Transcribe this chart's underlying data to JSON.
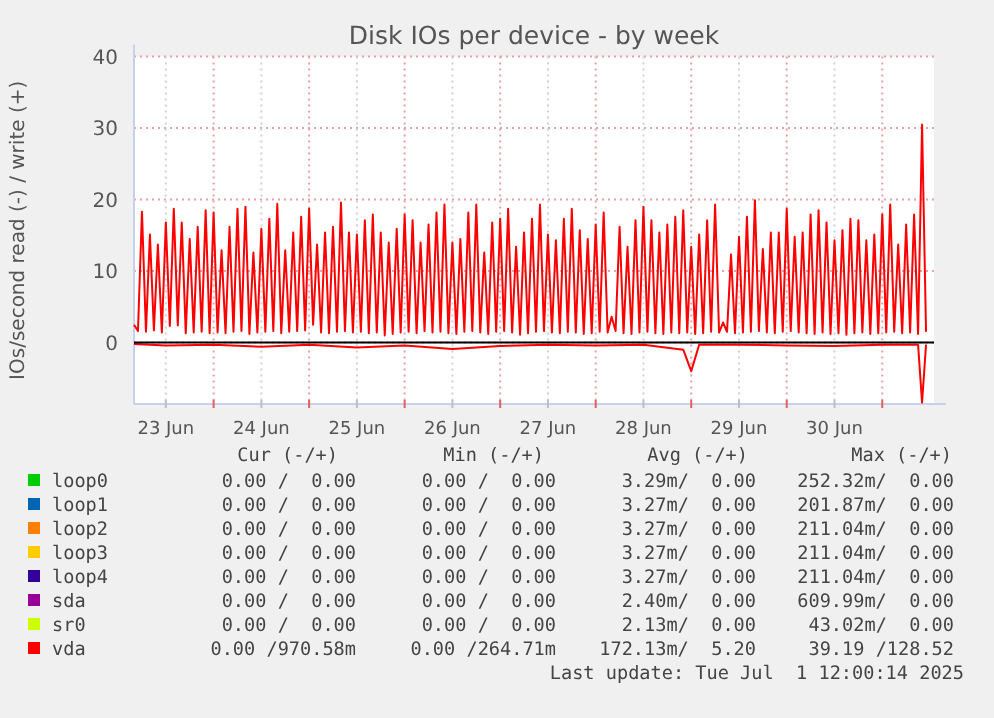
{
  "chart_data": {
    "type": "line",
    "title": "Disk IOs per device - by week",
    "ylabel": "IOs/second read (-) / write (+)",
    "xlim": [
      "2025-06-23T04:00",
      "2025-07-01T13:00"
    ],
    "xticks": [
      {
        "value": "2025-06-23T12:00",
        "label": "23 Jun"
      },
      {
        "value": "2025-06-24T00:00",
        "label": null
      },
      {
        "value": "2025-06-24T12:00",
        "label": "24 Jun"
      },
      {
        "value": "2025-06-25T00:00",
        "label": null
      },
      {
        "value": "2025-06-25T12:00",
        "label": "25 Jun"
      },
      {
        "value": "2025-06-26T00:00",
        "label": null
      },
      {
        "value": "2025-06-26T12:00",
        "label": "26 Jun"
      },
      {
        "value": "2025-06-27T00:00",
        "label": null
      },
      {
        "value": "2025-06-27T12:00",
        "label": "27 Jun"
      },
      {
        "value": "2025-06-28T00:00",
        "label": null
      },
      {
        "value": "2025-06-28T12:00",
        "label": "28 Jun"
      },
      {
        "value": "2025-06-29T00:00",
        "label": null
      },
      {
        "value": "2025-06-29T12:00",
        "label": "29 Jun"
      },
      {
        "value": "2025-06-30T00:00",
        "label": null
      },
      {
        "value": "2025-06-30T12:00",
        "label": "30 Jun"
      },
      {
        "value": "2025-07-01T00:00",
        "label": null
      }
    ],
    "ref_lines": [
      {
        "axis": "y",
        "value": 0,
        "color": "#000000"
      }
    ],
    "ylim": [
      -8.6,
      40
    ],
    "yticks": [
      0,
      10,
      20,
      30,
      40
    ],
    "grid": true,
    "legend": "bottom",
    "series": [
      {
        "name": "loop0",
        "color": "#00cc00"
      },
      {
        "name": "loop1",
        "color": "#0066b3"
      },
      {
        "name": "loop2",
        "color": "#ff8000"
      },
      {
        "name": "loop3",
        "color": "#ffcc00"
      },
      {
        "name": "loop4",
        "color": "#330099"
      },
      {
        "name": "sda",
        "color": "#990099"
      },
      {
        "name": "sr0",
        "color": "#ccff00"
      },
      {
        "name": "vda",
        "color": "#ff0000",
        "x": [
          "2025-06-23T04:00",
          "2025-06-23T05:00",
          "2025-06-23T06:00",
          "2025-06-23T07:00",
          "2025-06-23T08:00",
          "2025-06-23T09:00",
          "2025-06-23T10:00",
          "2025-06-23T11:00",
          "2025-06-23T12:00",
          "2025-06-23T13:00",
          "2025-06-23T14:00",
          "2025-06-23T15:00",
          "2025-06-23T16:00",
          "2025-06-23T17:00",
          "2025-06-23T18:00",
          "2025-06-23T19:00",
          "2025-06-23T20:00",
          "2025-06-23T21:00",
          "2025-06-23T22:00",
          "2025-06-23T23:00",
          "2025-06-24T00:00",
          "2025-06-24T01:00",
          "2025-06-24T02:00",
          "2025-06-24T03:00",
          "2025-06-24T04:00",
          "2025-06-24T05:00",
          "2025-06-24T06:00",
          "2025-06-24T07:00",
          "2025-06-24T08:00",
          "2025-06-24T09:00",
          "2025-06-24T10:00",
          "2025-06-24T11:00",
          "2025-06-24T12:00",
          "2025-06-24T13:00",
          "2025-06-24T14:00",
          "2025-06-24T15:00",
          "2025-06-24T16:00",
          "2025-06-24T17:00",
          "2025-06-24T18:00",
          "2025-06-24T19:00",
          "2025-06-24T20:00",
          "2025-06-24T21:00",
          "2025-06-24T22:00",
          "2025-06-24T23:00",
          "2025-06-25T00:00",
          "2025-06-25T01:00",
          "2025-06-25T02:00",
          "2025-06-25T03:00",
          "2025-06-25T04:00",
          "2025-06-25T05:00",
          "2025-06-25T06:00",
          "2025-06-25T07:00",
          "2025-06-25T08:00",
          "2025-06-25T09:00",
          "2025-06-25T10:00",
          "2025-06-25T11:00",
          "2025-06-25T12:00",
          "2025-06-25T13:00",
          "2025-06-25T14:00",
          "2025-06-25T15:00",
          "2025-06-25T16:00",
          "2025-06-25T17:00",
          "2025-06-25T18:00",
          "2025-06-25T19:00",
          "2025-06-25T20:00",
          "2025-06-25T21:00",
          "2025-06-25T22:00",
          "2025-06-25T23:00",
          "2025-06-26T00:00",
          "2025-06-26T01:00",
          "2025-06-26T02:00",
          "2025-06-26T03:00",
          "2025-06-26T04:00",
          "2025-06-26T05:00",
          "2025-06-26T06:00",
          "2025-06-26T07:00",
          "2025-06-26T08:00",
          "2025-06-26T09:00",
          "2025-06-26T10:00",
          "2025-06-26T11:00",
          "2025-06-26T12:00",
          "2025-06-26T13:00",
          "2025-06-26T14:00",
          "2025-06-26T15:00",
          "2025-06-26T16:00",
          "2025-06-26T17:00",
          "2025-06-26T18:00",
          "2025-06-26T19:00",
          "2025-06-26T20:00",
          "2025-06-26T21:00",
          "2025-06-26T22:00",
          "2025-06-26T23:00",
          "2025-06-27T00:00",
          "2025-06-27T01:00",
          "2025-06-27T02:00",
          "2025-06-27T03:00",
          "2025-06-27T04:00",
          "2025-06-27T05:00",
          "2025-06-27T06:00",
          "2025-06-27T07:00",
          "2025-06-27T08:00",
          "2025-06-27T09:00",
          "2025-06-27T10:00",
          "2025-06-27T11:00",
          "2025-06-27T12:00",
          "2025-06-27T13:00",
          "2025-06-27T14:00",
          "2025-06-27T15:00",
          "2025-06-27T16:00",
          "2025-06-27T17:00",
          "2025-06-27T18:00",
          "2025-06-27T19:00",
          "2025-06-27T20:00",
          "2025-06-27T21:00",
          "2025-06-27T22:00",
          "2025-06-27T23:00",
          "2025-06-28T00:00",
          "2025-06-28T01:00",
          "2025-06-28T02:00",
          "2025-06-28T03:00",
          "2025-06-28T04:00",
          "2025-06-28T05:00",
          "2025-06-28T06:00",
          "2025-06-28T07:00",
          "2025-06-28T08:00",
          "2025-06-28T09:00",
          "2025-06-28T10:00",
          "2025-06-28T11:00",
          "2025-06-28T12:00",
          "2025-06-28T13:00",
          "2025-06-28T14:00",
          "2025-06-28T15:00",
          "2025-06-28T16:00",
          "2025-06-28T17:00",
          "2025-06-28T18:00",
          "2025-06-28T19:00",
          "2025-06-28T20:00",
          "2025-06-28T21:00",
          "2025-06-28T22:00",
          "2025-06-28T23:00",
          "2025-06-29T00:00",
          "2025-06-29T01:00",
          "2025-06-29T02:00",
          "2025-06-29T03:00",
          "2025-06-29T04:00",
          "2025-06-29T05:00",
          "2025-06-29T06:00",
          "2025-06-29T07:00",
          "2025-06-29T08:00",
          "2025-06-29T09:00",
          "2025-06-29T10:00",
          "2025-06-29T11:00",
          "2025-06-29T12:00",
          "2025-06-29T13:00",
          "2025-06-29T14:00",
          "2025-06-29T15:00",
          "2025-06-29T16:00",
          "2025-06-29T17:00",
          "2025-06-29T18:00",
          "2025-06-29T19:00",
          "2025-06-29T20:00",
          "2025-06-29T21:00",
          "2025-06-29T22:00",
          "2025-06-29T23:00",
          "2025-06-30T00:00",
          "2025-06-30T01:00",
          "2025-06-30T02:00",
          "2025-06-30T03:00",
          "2025-06-30T04:00",
          "2025-06-30T05:00",
          "2025-06-30T06:00",
          "2025-06-30T07:00",
          "2025-06-30T08:00",
          "2025-06-30T09:00",
          "2025-06-30T10:00",
          "2025-06-30T11:00",
          "2025-06-30T12:00",
          "2025-06-30T13:00",
          "2025-06-30T14:00",
          "2025-06-30T15:00",
          "2025-06-30T16:00",
          "2025-06-30T17:00",
          "2025-06-30T18:00",
          "2025-06-30T19:00",
          "2025-06-30T20:00",
          "2025-06-30T21:00",
          "2025-06-30T22:00",
          "2025-06-30T23:00",
          "2025-07-01T00:00",
          "2025-07-01T01:00",
          "2025-07-01T02:00",
          "2025-07-01T03:00",
          "2025-07-01T04:00",
          "2025-07-01T05:00",
          "2025-07-01T06:00",
          "2025-07-01T07:00",
          "2025-07-01T08:00",
          "2025-07-01T09:00",
          "2025-07-01T10:00",
          "2025-07-01T11:00"
        ],
        "values": [
          2.5,
          1.6,
          18.3,
          1.5,
          15.1,
          1.7,
          13.7,
          1.4,
          16.8,
          2.3,
          18.7,
          2.4,
          16.8,
          1.3,
          14.5,
          1.4,
          16.2,
          1.5,
          18.5,
          1.3,
          18.2,
          1.4,
          12.9,
          1.3,
          16.2,
          1.5,
          18.7,
          1.6,
          19.0,
          1.2,
          12.6,
          1.4,
          15.9,
          1.5,
          17.3,
          1.6,
          19.4,
          1.3,
          12.9,
          1.5,
          15.4,
          1.6,
          17.6,
          1.7,
          18.7,
          2.5,
          13.7,
          1.4,
          15.4,
          1.3,
          16.2,
          1.5,
          19.6,
          1.6,
          15.4,
          1.4,
          15.1,
          1.5,
          17.1,
          1.3,
          17.9,
          1.4,
          15.4,
          1.0,
          14.0,
          1.2,
          15.9,
          1.4,
          17.9,
          1.5,
          17.1,
          1.3,
          14.0,
          1.6,
          16.5,
          1.4,
          18.2,
          1.5,
          19.3,
          1.3,
          14.0,
          1.2,
          14.5,
          1.5,
          18.2,
          1.6,
          19.3,
          1.4,
          12.6,
          1.2,
          16.8,
          1.5,
          17.3,
          1.6,
          18.7,
          1.4,
          13.4,
          1.1,
          15.4,
          1.3,
          17.3,
          1.5,
          19.3,
          1.6,
          15.1,
          1.4,
          14.3,
          1.3,
          17.3,
          1.5,
          18.7,
          1.4,
          15.7,
          1.2,
          14.5,
          1.3,
          16.5,
          1.5,
          18.2,
          1.4,
          3.6,
          1.6,
          16.2,
          1.3,
          13.4,
          1.2,
          17.1,
          1.4,
          19.0,
          1.5,
          17.1,
          1.3,
          15.4,
          1.2,
          16.5,
          1.4,
          17.6,
          1.3,
          18.5,
          1.4,
          13.4,
          1.2,
          15.1,
          1.3,
          17.1,
          1.5,
          19.3,
          1.4,
          2.8,
          1.5,
          12.3,
          1.3,
          14.8,
          1.4,
          17.6,
          1.5,
          19.9,
          1.6,
          13.1,
          1.4,
          15.4,
          1.3,
          15.4,
          1.5,
          18.7,
          1.6,
          14.8,
          1.4,
          15.4,
          1.3,
          17.9,
          1.2,
          18.5,
          1.4,
          16.8,
          1.2,
          14.3,
          1.3,
          15.7,
          1.1,
          17.3,
          1.3,
          17.1,
          1.4,
          14.3,
          1.2,
          15.1,
          1.3,
          17.9,
          1.4,
          19.3,
          1.5,
          13.7,
          1.3,
          16.5,
          1.4,
          17.9,
          1.2,
          30.5,
          1.5
        ]
      },
      {
        "color": "#ff0000",
        "x": [
          "2025-06-23T04:00",
          "2025-06-23T12:00",
          "2025-06-24T00:00",
          "2025-06-24T12:00",
          "2025-06-25T00:00",
          "2025-06-25T12:00",
          "2025-06-26T00:00",
          "2025-06-26T12:00",
          "2025-06-27T00:00",
          "2025-06-27T12:00",
          "2025-06-28T00:00",
          "2025-06-28T12:00",
          "2025-06-28T22:00",
          "2025-06-29T00:00",
          "2025-06-29T02:00",
          "2025-06-29T12:00",
          "2025-06-30T00:00",
          "2025-06-30T12:00",
          "2025-07-01T00:00",
          "2025-07-01T09:00",
          "2025-07-01T10:00",
          "2025-07-01T11:00"
        ],
        "values": [
          -0.2,
          -0.4,
          -0.3,
          -0.6,
          -0.3,
          -0.7,
          -0.4,
          -0.9,
          -0.5,
          -0.3,
          -0.4,
          -0.3,
          -1.0,
          -4.0,
          -0.3,
          -0.3,
          -0.4,
          -0.5,
          -0.3,
          -0.3,
          -8.4,
          -0.3
        ]
      }
    ],
    "annotations": [
      "Cur (-/+)",
      "Min (-/+)",
      "Avg (-/+)",
      "Max (-/+)",
      "0.00 /  0.00",
      "0.00 /  0.00",
      "3.29m/  0.00",
      "252.32m/  0.00",
      "0.00 /  0.00",
      "0.00 /  0.00",
      "3.27m/  0.00",
      "201.87m/  0.00",
      "0.00 /  0.00",
      "0.00 /  0.00",
      "3.27m/  0.00",
      "211.04m/  0.00",
      "0.00 /  0.00",
      "0.00 /  0.00",
      "3.27m/  0.00",
      "211.04m/  0.00",
      "0.00 /  0.00",
      "0.00 /  0.00",
      "3.27m/  0.00",
      "211.04m/  0.00",
      "0.00 /  0.00",
      "0.00 /  0.00",
      "2.40m/  0.00",
      "609.99m/  0.00",
      "0.00 /  0.00",
      "0.00 /  0.00",
      "2.13m/  0.00",
      "43.02m/  0.00",
      "0.00 /970.58m",
      "0.00 /264.71m",
      "172.13m/  5.20",
      "39.19 /128.52",
      "Last update: Tue Jul  1 12:00:14 2025"
    ]
  }
}
